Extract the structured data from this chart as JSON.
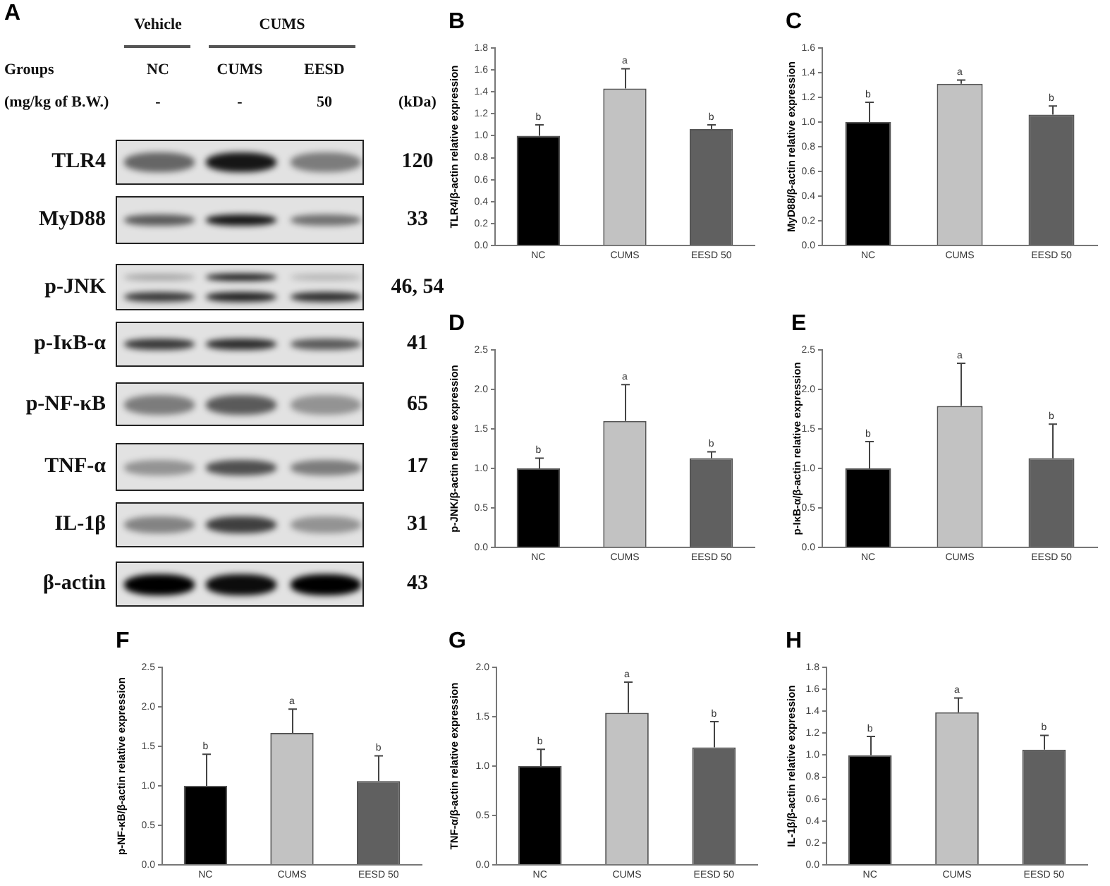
{
  "chart_data": [
    {
      "type": "other",
      "title": "A",
      "categories": [
        "NC",
        "CUMS",
        "EESD"
      ],
      "y_categories": [
        "TLR4",
        "MyD88",
        "p-JNK",
        "p-IκB-α",
        "p-NF-κB",
        "TNF-α",
        "IL-1β",
        "β-actin"
      ],
      "y2_categories": [
        "120",
        "33",
        "46, 54",
        "41",
        "65",
        "17",
        "31",
        "43"
      ],
      "annotations": [
        "Vehicle",
        "CUMS",
        "Groups",
        "(mg/kg of B.W.)",
        "-",
        "-",
        "50",
        "(kDa)"
      ]
    },
    {
      "type": "bar",
      "title": "B",
      "ylabel": "TLR4/β-actin relative expression",
      "categories": [
        "NC",
        "CUMS",
        "EESD 50"
      ],
      "values": [
        1,
        1.43,
        1.06
      ],
      "colors": [
        "#000000",
        "#c2c2c2",
        "#606060"
      ],
      "errors": [
        [
          1,
          1.1
        ],
        [
          1.43,
          1.61
        ],
        [
          1.06,
          1.1
        ]
      ],
      "ylim": [
        0,
        1.8
      ],
      "yticks": [
        {
          "value": 0,
          "label": "0.0"
        },
        0.2,
        0.4,
        0.6,
        0.8,
        {
          "value": 1,
          "label": "1.0"
        },
        1.2,
        1.4,
        1.6,
        1.8
      ],
      "annotations": [
        {
          "text": "b",
          "x": "NC",
          "y": 1.1
        },
        {
          "text": "a",
          "x": "CUMS",
          "y": 1.61
        },
        {
          "text": "b",
          "x": "EESD 50",
          "y": 1.1
        }
      ]
    },
    {
      "type": "bar",
      "title": "C",
      "ylabel": "MyD88/β-actin relative expression",
      "categories": [
        "NC",
        "CUMS",
        "EESD 50"
      ],
      "values": [
        1,
        1.31,
        1.06
      ],
      "colors": [
        "#000000",
        "#c2c2c2",
        "#606060"
      ],
      "errors": [
        [
          1,
          1.16
        ],
        [
          1.31,
          1.34
        ],
        [
          1.06,
          1.13
        ]
      ],
      "ylim": [
        0,
        1.6
      ],
      "yticks": [
        {
          "value": 0,
          "label": "0.0"
        },
        0.2,
        0.4,
        0.6,
        0.8,
        {
          "value": 1,
          "label": "1.0"
        },
        1.2,
        1.4,
        1.6
      ],
      "annotations": [
        {
          "text": "b",
          "x": "NC",
          "y": 1.16
        },
        {
          "text": "a",
          "x": "CUMS",
          "y": 1.34
        },
        {
          "text": "b",
          "x": "EESD 50",
          "y": 1.13
        }
      ]
    },
    {
      "type": "bar",
      "title": "D",
      "ylabel": "p-JNK/β-actin relative expression",
      "categories": [
        "NC",
        "CUMS",
        "EESD 50"
      ],
      "values": [
        1,
        1.6,
        1.13
      ],
      "colors": [
        "#000000",
        "#c2c2c2",
        "#606060"
      ],
      "errors": [
        [
          1,
          1.13
        ],
        [
          1.6,
          2.06
        ],
        [
          1.13,
          1.21
        ]
      ],
      "ylim": [
        0,
        2.5
      ],
      "yticks": [
        {
          "value": 0,
          "label": "0.0"
        },
        0.5,
        {
          "value": 1,
          "label": "1.0"
        },
        1.5,
        {
          "value": 2,
          "label": "2.0"
        },
        2.5
      ],
      "annotations": [
        {
          "text": "b",
          "x": "NC",
          "y": 1.13
        },
        {
          "text": "a",
          "x": "CUMS",
          "y": 2.06
        },
        {
          "text": "b",
          "x": "EESD 50",
          "y": 1.21
        }
      ]
    },
    {
      "type": "bar",
      "title": "E",
      "ylabel": "p-IκB-α/β-actin relative expression",
      "categories": [
        "NC",
        "CUMS",
        "EESD 50"
      ],
      "values": [
        1,
        1.79,
        1.13
      ],
      "colors": [
        "#000000",
        "#c2c2c2",
        "#606060"
      ],
      "errors": [
        [
          1,
          1.34
        ],
        [
          1.79,
          2.33
        ],
        [
          1.13,
          1.56
        ]
      ],
      "ylim": [
        0,
        2.5
      ],
      "yticks": [
        {
          "value": 0,
          "label": "0.0"
        },
        0.5,
        {
          "value": 1,
          "label": "1.0"
        },
        1.5,
        {
          "value": 2,
          "label": "2.0"
        },
        2.5
      ],
      "annotations": [
        {
          "text": "b",
          "x": "NC",
          "y": 1.34
        },
        {
          "text": "a",
          "x": "CUMS",
          "y": 2.33
        },
        {
          "text": "b",
          "x": "EESD 50",
          "y": 1.56
        }
      ]
    },
    {
      "type": "bar",
      "title": "F",
      "ylabel": "p-NF-κB/β-actin relative expression",
      "categories": [
        "NC",
        "CUMS",
        "EESD 50"
      ],
      "values": [
        1,
        1.67,
        1.06
      ],
      "colors": [
        "#000000",
        "#c2c2c2",
        "#606060"
      ],
      "errors": [
        [
          1,
          1.4
        ],
        [
          1.67,
          1.97
        ],
        [
          1.06,
          1.38
        ]
      ],
      "ylim": [
        0,
        2.5
      ],
      "yticks": [
        {
          "value": 0,
          "label": "0.0"
        },
        0.5,
        {
          "value": 1,
          "label": "1.0"
        },
        1.5,
        {
          "value": 2,
          "label": "2.0"
        },
        2.5
      ],
      "annotations": [
        {
          "text": "b",
          "x": "NC",
          "y": 1.4
        },
        {
          "text": "a",
          "x": "CUMS",
          "y": 1.97
        },
        {
          "text": "b",
          "x": "EESD 50",
          "y": 1.38
        }
      ]
    },
    {
      "type": "bar",
      "title": "G",
      "ylabel": "TNF-α/β-actin relative expression",
      "categories": [
        "NC",
        "CUMS",
        "EESD 50"
      ],
      "values": [
        1,
        1.54,
        1.19
      ],
      "colors": [
        "#000000",
        "#c2c2c2",
        "#606060"
      ],
      "errors": [
        [
          1,
          1.17
        ],
        [
          1.54,
          1.85
        ],
        [
          1.19,
          1.45
        ]
      ],
      "ylim": [
        0,
        2
      ],
      "yticks": [
        {
          "value": 0,
          "label": "0.0"
        },
        0.5,
        {
          "value": 1,
          "label": "1.0"
        },
        1.5,
        {
          "value": 2,
          "label": "2.0"
        }
      ],
      "annotations": [
        {
          "text": "b",
          "x": "NC",
          "y": 1.17
        },
        {
          "text": "a",
          "x": "CUMS",
          "y": 1.85
        },
        {
          "text": "b",
          "x": "EESD 50",
          "y": 1.45
        }
      ]
    },
    {
      "type": "bar",
      "title": "H",
      "ylabel": "IL-1β/β-actin relative expression",
      "categories": [
        "NC",
        "CUMS",
        "EESD 50"
      ],
      "values": [
        1,
        1.39,
        1.05
      ],
      "colors": [
        "#000000",
        "#c2c2c2",
        "#606060"
      ],
      "errors": [
        [
          1,
          1.17
        ],
        [
          1.39,
          1.52
        ],
        [
          1.05,
          1.18
        ]
      ],
      "ylim": [
        0,
        1.8
      ],
      "yticks": [
        {
          "value": 0,
          "label": "0.0"
        },
        0.2,
        0.4,
        0.6,
        0.8,
        {
          "value": 1,
          "label": "1.0"
        },
        1.2,
        1.4,
        1.6,
        1.8
      ],
      "annotations": [
        {
          "text": "b",
          "x": "NC",
          "y": 1.17
        },
        {
          "text": "a",
          "x": "CUMS",
          "y": 1.52
        },
        {
          "text": "b",
          "x": "EESD 50",
          "y": 1.18
        }
      ]
    }
  ]
}
